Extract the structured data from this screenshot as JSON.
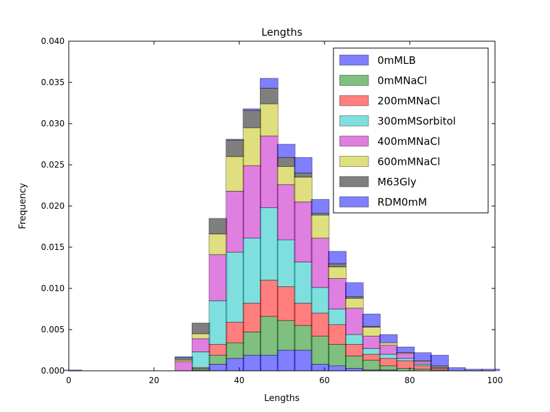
{
  "chart_data": {
    "type": "bar",
    "stacked": true,
    "title": "Lengths",
    "xlabel": "Lengths",
    "ylabel": "Frequency",
    "xlim": [
      0,
      100
    ],
    "ylim": [
      0,
      0.04
    ],
    "xticks": [
      "0",
      "20",
      "40",
      "60",
      "80",
      "100"
    ],
    "yticks": [
      "0.000",
      "0.005",
      "0.010",
      "0.015",
      "0.020",
      "0.025",
      "0.030",
      "0.035",
      "0.040"
    ],
    "grid": false,
    "legend_position": "top-right",
    "bin_width": 4.2,
    "bins": [
      1,
      5,
      9,
      13,
      17,
      21,
      27,
      31,
      35,
      39,
      43,
      47,
      51,
      55,
      59,
      63,
      67,
      71,
      75,
      79,
      83,
      87,
      91,
      95,
      99
    ],
    "series": [
      {
        "name": "0mMLB",
        "color": "#0000ff",
        "values": [
          0,
          0,
          0,
          0,
          0,
          0,
          0.0,
          0.0001,
          0.0008,
          0.0015,
          0.0019,
          0.0019,
          0.0025,
          0.0025,
          0.0008,
          0.0006,
          0.0003,
          0.0001,
          0.0001,
          0.0,
          0.0,
          0.0,
          0.0,
          0.0,
          0.0
        ]
      },
      {
        "name": "0mMNaCl",
        "color": "#008000",
        "values": [
          0,
          0,
          0,
          0,
          0,
          0,
          0.0,
          0.0002,
          0.0011,
          0.0019,
          0.0028,
          0.0047,
          0.0036,
          0.003,
          0.0034,
          0.0026,
          0.0015,
          0.0012,
          0.0005,
          0.0003,
          0.0002,
          0.0001,
          0.0,
          0.0,
          0.0
        ]
      },
      {
        "name": "200mMNaCl",
        "color": "#ff0000",
        "values": [
          0,
          0,
          0,
          0,
          0,
          0,
          0.0,
          0.0001,
          0.0013,
          0.0025,
          0.0035,
          0.0044,
          0.0041,
          0.0027,
          0.0028,
          0.0024,
          0.0014,
          0.0007,
          0.0009,
          0.0009,
          0.0004,
          0.0002,
          0.0,
          0.0,
          0.0
        ]
      },
      {
        "name": "300mMSorbitol",
        "color": "#00bfbf",
        "values": [
          0,
          0,
          0,
          0,
          0,
          0,
          0.0,
          0.0019,
          0.0053,
          0.0085,
          0.0079,
          0.0088,
          0.0057,
          0.005,
          0.0031,
          0.0019,
          0.0012,
          0.0007,
          0.0005,
          0.0003,
          0.0002,
          0.0001,
          0.0,
          0.0,
          0.0
        ]
      },
      {
        "name": "400mMNaCl",
        "color": "#bf00bf",
        "values": [
          0,
          0,
          0,
          0,
          0,
          0,
          0.0011,
          0.0016,
          0.0056,
          0.0074,
          0.0088,
          0.0087,
          0.0067,
          0.0073,
          0.006,
          0.0037,
          0.0032,
          0.0015,
          0.0011,
          0.0006,
          0.0003,
          0.0001,
          0.0,
          0.0,
          0.0
        ]
      },
      {
        "name": "600mMNaCl",
        "color": "#bfbf00",
        "values": [
          0,
          0,
          0,
          0,
          0,
          0,
          0.0002,
          0.0006,
          0.0025,
          0.0042,
          0.0046,
          0.0039,
          0.0022,
          0.003,
          0.0028,
          0.0014,
          0.0012,
          0.0011,
          0.0003,
          0.0001,
          0.0001,
          0.0001,
          0.0,
          0.0,
          0.0
        ]
      },
      {
        "name": "M63Gly",
        "color": "#000000",
        "values": [
          0,
          0,
          0,
          0,
          0,
          0,
          0.0003,
          0.0013,
          0.0019,
          0.002,
          0.0021,
          0.0019,
          0.0011,
          0.0005,
          0.0002,
          0.0004,
          0.0002,
          0.0001,
          0.0,
          0.0,
          0.0,
          0.0,
          0.0,
          0.0,
          0.0
        ]
      },
      {
        "name": "RDM0mM",
        "color": "#0000ff",
        "values": [
          0.0001,
          0,
          0,
          0,
          0,
          0,
          0.0001,
          0.0,
          0.0,
          0.0001,
          0.0002,
          0.0012,
          0.0016,
          0.0019,
          0.0017,
          0.0015,
          0.0017,
          0.0015,
          0.001,
          0.0007,
          0.001,
          0.0013,
          0.0004,
          0.0002,
          0.0002
        ]
      }
    ]
  }
}
